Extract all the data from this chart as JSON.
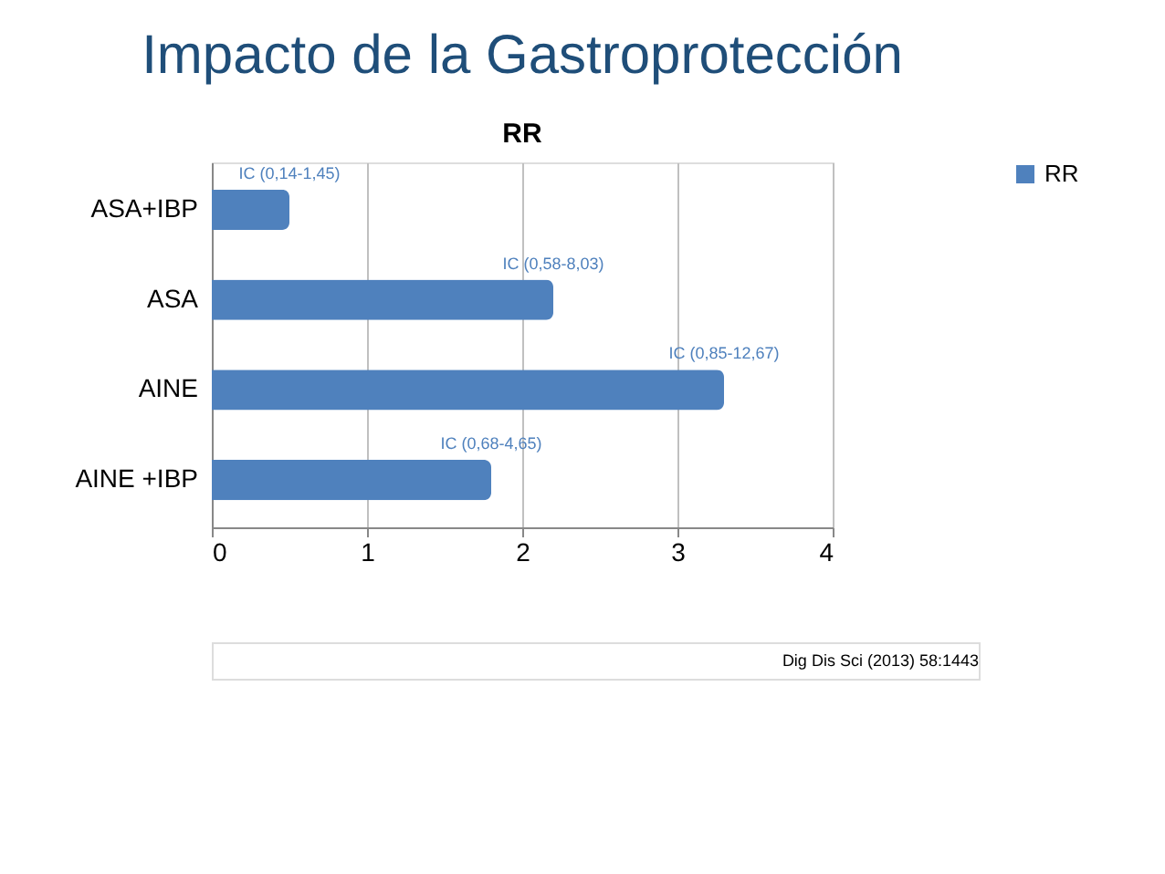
{
  "chart_data": {
    "type": "bar",
    "orientation": "horizontal",
    "title": "Impacto de la Gastroprotección",
    "subtitle": "RR",
    "categories": [
      "ASA+IBP",
      "ASA",
      "AINE",
      "AINE +IBP"
    ],
    "series": [
      {
        "name": "RR",
        "color": "#4f81bd",
        "values": [
          0.5,
          2.2,
          3.3,
          1.8
        ]
      }
    ],
    "xlim": [
      0,
      4
    ],
    "xticks": [
      0,
      1,
      2,
      3,
      4
    ],
    "grid": "x",
    "legend": "right",
    "annotations": [
      {
        "text": "IC (0,14-1,45)",
        "x": 0.5,
        "y": "ASA+IBP"
      },
      {
        "text": "IC (0,58-8,03)",
        "x": 2.2,
        "y": "ASA"
      },
      {
        "text": "IC (0,85-12,67)",
        "x": 3.3,
        "y": "AINE"
      },
      {
        "text": "IC (0,68-4,65)",
        "x": 1.8,
        "y": "AINE +IBP"
      },
      "Dig Dis Sci (2013) 58:1443"
    ]
  }
}
